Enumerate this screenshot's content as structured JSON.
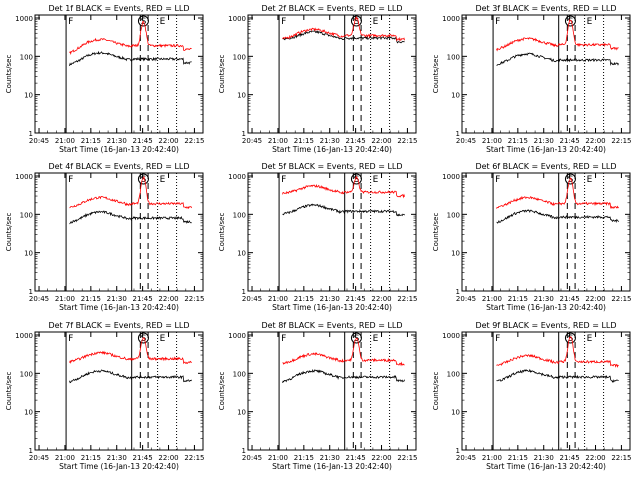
{
  "chart_data": [
    {
      "type": "line",
      "title": "Det 1f BLACK = Events, RED = LLD",
      "black_level": 85,
      "red_level": 190,
      "red_peak": 800,
      "red_start": 120,
      "black_start": 60,
      "flare_pos": 0.0,
      "xlabel": "Start Time (16-Jan-13 20:42:40)",
      "ylabel": "Counts/sec"
    },
    {
      "type": "line",
      "title": "Det 2f BLACK = Events, RED = LLD",
      "black_level": 300,
      "red_level": 350,
      "red_peak": 1000,
      "red_start": 280,
      "black_start": 280,
      "flare_pos": 0.0,
      "xlabel": "Start Time (16-Jan-13 20:42:40)",
      "ylabel": "Counts/sec"
    },
    {
      "type": "line",
      "title": "Det 3f BLACK = Events, RED = LLD",
      "black_level": 80,
      "red_level": 200,
      "red_peak": 900,
      "red_start": 150,
      "black_start": 60,
      "flare_pos": 0.0,
      "xlabel": "Start Time (16-Jan-13 20:42:40)",
      "ylabel": "Counts/sec"
    },
    {
      "type": "line",
      "title": "Det 4f BLACK = Events, RED = LLD",
      "black_level": 80,
      "red_level": 190,
      "red_peak": 900,
      "red_start": 150,
      "black_start": 60,
      "flare_pos": 0.0,
      "xlabel": "Start Time (16-Jan-13 20:42:40)",
      "ylabel": "Counts/sec"
    },
    {
      "type": "line",
      "title": "Det 5f BLACK = Events, RED = LLD",
      "black_level": 120,
      "red_level": 380,
      "red_peak": 900,
      "red_start": 350,
      "black_start": 100,
      "flare_pos": 0.0,
      "xlabel": "Start Time (16-Jan-13 20:42:40)",
      "ylabel": "Counts/sec"
    },
    {
      "type": "line",
      "title": "Det 6f BLACK = Events, RED = LLD",
      "black_level": 85,
      "red_level": 190,
      "red_peak": 850,
      "red_start": 150,
      "black_start": 60,
      "flare_pos": 0.0,
      "xlabel": "Start Time (16-Jan-13 20:42:40)",
      "ylabel": "Counts/sec"
    },
    {
      "type": "line",
      "title": "Det 7f BLACK = Events, RED = LLD",
      "black_level": 80,
      "red_level": 240,
      "red_peak": 850,
      "red_start": 200,
      "black_start": 60,
      "flare_pos": 0.0,
      "xlabel": "Start Time (16-Jan-13 20:42:40)",
      "ylabel": "Counts/sec"
    },
    {
      "type": "line",
      "title": "Det 8f BLACK = Events, RED = LLD",
      "black_level": 80,
      "red_level": 220,
      "red_peak": 850,
      "red_start": 180,
      "black_start": 60,
      "flare_pos": 0.0,
      "xlabel": "Start Time (16-Jan-13 20:42:40)",
      "ylabel": "Counts/sec"
    },
    {
      "type": "line",
      "title": "Det 9f BLACK = Events, RED = LLD",
      "black_level": 80,
      "red_level": 200,
      "red_peak": 900,
      "red_start": 160,
      "black_start": 60,
      "flare_pos": 0.0,
      "xlabel": "Start Time (16-Jan-13 20:42:40)",
      "ylabel": "Counts/sec"
    }
  ],
  "shared": {
    "x_tick_labels": [
      "20:45",
      "21:00",
      "21:15",
      "21:30",
      "21:45",
      "22:00",
      "22:15"
    ],
    "y_tick_labels": [
      "1",
      "10",
      "100",
      "1000"
    ],
    "y_scale": "log",
    "ylim": [
      1,
      1000
    ],
    "markers": {
      "F": "F",
      "S": "S",
      "E": "E"
    },
    "colors": {
      "events": "#000000",
      "lld": "#ff0000",
      "axes": "#000000"
    }
  }
}
